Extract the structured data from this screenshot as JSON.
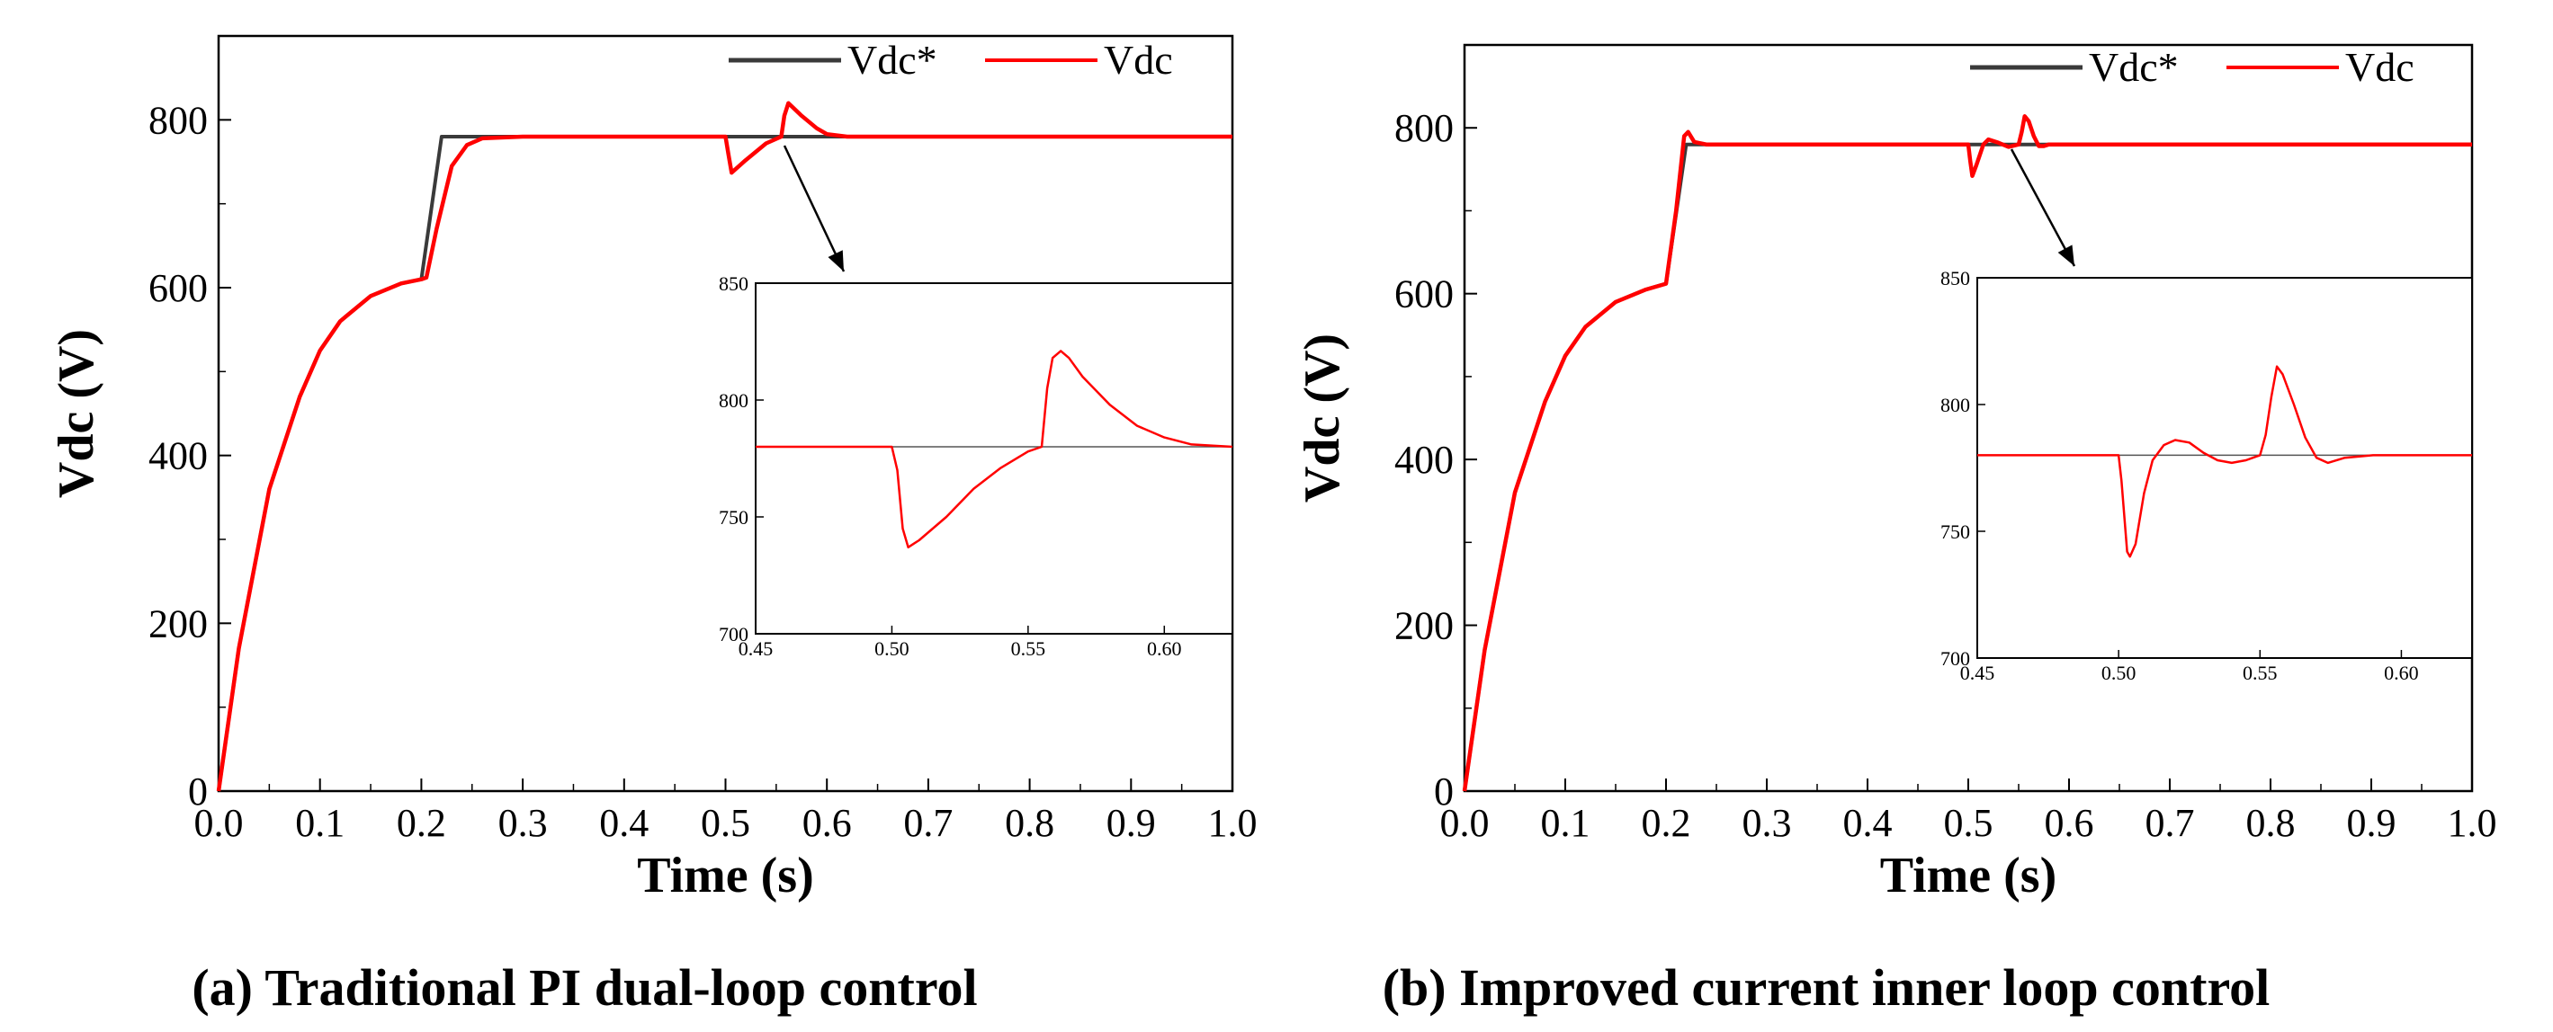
{
  "chart_data": [
    {
      "type": "line",
      "panel_label": "(a) Traditional PI dual-loop control",
      "xlabel": "Time (s)",
      "ylabel": "Vdc (V)",
      "xlim": [
        0,
        1.0
      ],
      "ylim": [
        0,
        900
      ],
      "x_ticks": [
        "0.0",
        "0.1",
        "0.2",
        "0.3",
        "0.4",
        "0.5",
        "0.6",
        "0.7",
        "0.8",
        "0.9",
        "1.0"
      ],
      "y_ticks": [
        "0",
        "200",
        "400",
        "600",
        "800"
      ],
      "legend_position": "top-right",
      "series": [
        {
          "name": "Vdc*",
          "color": "#3a3a3a",
          "points": [
            [
              0,
              0
            ],
            [
              0.02,
              170
            ],
            [
              0.05,
              360
            ],
            [
              0.08,
              470
            ],
            [
              0.1,
              525
            ],
            [
              0.12,
              560
            ],
            [
              0.15,
              590
            ],
            [
              0.18,
              605
            ],
            [
              0.2,
              610
            ],
            [
              0.22,
              780
            ],
            [
              1.0,
              780
            ]
          ]
        },
        {
          "name": "Vdc",
          "color": "#ff0000",
          "points": [
            [
              0,
              0
            ],
            [
              0.02,
              170
            ],
            [
              0.05,
              360
            ],
            [
              0.08,
              470
            ],
            [
              0.1,
              525
            ],
            [
              0.12,
              560
            ],
            [
              0.15,
              590
            ],
            [
              0.18,
              605
            ],
            [
              0.2,
              610
            ],
            [
              0.205,
              612
            ],
            [
              0.215,
              670
            ],
            [
              0.23,
              745
            ],
            [
              0.245,
              770
            ],
            [
              0.26,
              778
            ],
            [
              0.3,
              780
            ],
            [
              0.5,
              780
            ],
            [
              0.503,
              758
            ],
            [
              0.506,
              737
            ],
            [
              0.52,
              752
            ],
            [
              0.54,
              772
            ],
            [
              0.555,
              780
            ],
            [
              0.558,
              805
            ],
            [
              0.562,
              820
            ],
            [
              0.575,
              805
            ],
            [
              0.59,
              790
            ],
            [
              0.6,
              783
            ],
            [
              0.62,
              780
            ],
            [
              1.0,
              780
            ]
          ]
        }
      ],
      "inset": {
        "xlim": [
          0.45,
          0.625
        ],
        "ylim": [
          700,
          850
        ],
        "x_ticks": [
          "0.45",
          "0.50",
          "0.55",
          "0.60"
        ],
        "y_ticks": [
          "700",
          "750",
          "800",
          "850"
        ],
        "series": [
          {
            "name": "Vdc*",
            "color": "#555555",
            "points": [
              [
                0.45,
                780
              ],
              [
                0.625,
                780
              ]
            ]
          },
          {
            "name": "Vdc",
            "color": "#ff0000",
            "points": [
              [
                0.45,
                780
              ],
              [
                0.5,
                780
              ],
              [
                0.502,
                770
              ],
              [
                0.504,
                745
              ],
              [
                0.506,
                737
              ],
              [
                0.51,
                740
              ],
              [
                0.52,
                750
              ],
              [
                0.53,
                762
              ],
              [
                0.54,
                771
              ],
              [
                0.55,
                778
              ],
              [
                0.555,
                780
              ],
              [
                0.557,
                805
              ],
              [
                0.559,
                818
              ],
              [
                0.562,
                821
              ],
              [
                0.565,
                818
              ],
              [
                0.57,
                810
              ],
              [
                0.58,
                798
              ],
              [
                0.59,
                789
              ],
              [
                0.6,
                784
              ],
              [
                0.61,
                781
              ],
              [
                0.625,
                780
              ]
            ]
          }
        ]
      }
    },
    {
      "type": "line",
      "panel_label": "(b) Improved current inner loop control",
      "xlabel": "Time (s)",
      "ylabel": "Vdc (V)",
      "xlim": [
        0,
        1.0
      ],
      "ylim": [
        0,
        900
      ],
      "x_ticks": [
        "0.0",
        "0.1",
        "0.2",
        "0.3",
        "0.4",
        "0.5",
        "0.6",
        "0.7",
        "0.8",
        "0.9",
        "1.0"
      ],
      "y_ticks": [
        "0",
        "200",
        "400",
        "600",
        "800"
      ],
      "legend_position": "top-right",
      "series": [
        {
          "name": "Vdc*",
          "color": "#3a3a3a",
          "points": [
            [
              0,
              0
            ],
            [
              0.02,
              170
            ],
            [
              0.05,
              360
            ],
            [
              0.08,
              470
            ],
            [
              0.1,
              525
            ],
            [
              0.12,
              560
            ],
            [
              0.15,
              590
            ],
            [
              0.18,
              605
            ],
            [
              0.2,
              612
            ],
            [
              0.22,
              780
            ],
            [
              1.0,
              780
            ]
          ]
        },
        {
          "name": "Vdc",
          "color": "#ff0000",
          "points": [
            [
              0,
              0
            ],
            [
              0.02,
              170
            ],
            [
              0.05,
              360
            ],
            [
              0.08,
              470
            ],
            [
              0.1,
              525
            ],
            [
              0.12,
              560
            ],
            [
              0.15,
              590
            ],
            [
              0.18,
              605
            ],
            [
              0.2,
              612
            ],
            [
              0.21,
              700
            ],
            [
              0.218,
              790
            ],
            [
              0.222,
              795
            ],
            [
              0.228,
              783
            ],
            [
              0.24,
              780
            ],
            [
              0.5,
              780
            ],
            [
              0.502,
              760
            ],
            [
              0.504,
              742
            ],
            [
              0.508,
              755
            ],
            [
              0.515,
              780
            ],
            [
              0.52,
              786
            ],
            [
              0.53,
              782
            ],
            [
              0.54,
              777
            ],
            [
              0.55,
              780
            ],
            [
              0.553,
              795
            ],
            [
              0.556,
              814
            ],
            [
              0.56,
              808
            ],
            [
              0.565,
              790
            ],
            [
              0.57,
              778
            ],
            [
              0.575,
              778
            ],
            [
              0.58,
              780
            ],
            [
              1.0,
              780
            ]
          ]
        }
      ],
      "inset": {
        "xlim": [
          0.45,
          0.625
        ],
        "ylim": [
          700,
          850
        ],
        "x_ticks": [
          "0.45",
          "0.50",
          "0.55",
          "0.60"
        ],
        "y_ticks": [
          "700",
          "750",
          "800",
          "850"
        ],
        "series": [
          {
            "name": "Vdc*",
            "color": "#555555",
            "points": [
              [
                0.45,
                780
              ],
              [
                0.625,
                780
              ]
            ]
          },
          {
            "name": "Vdc",
            "color": "#ff0000",
            "points": [
              [
                0.45,
                780
              ],
              [
                0.5,
                780
              ],
              [
                0.501,
                770
              ],
              [
                0.503,
                742
              ],
              [
                0.504,
                740
              ],
              [
                0.506,
                745
              ],
              [
                0.509,
                765
              ],
              [
                0.512,
                778
              ],
              [
                0.516,
                784
              ],
              [
                0.52,
                786
              ],
              [
                0.525,
                785
              ],
              [
                0.53,
                781
              ],
              [
                0.535,
                778
              ],
              [
                0.54,
                777
              ],
              [
                0.545,
                778
              ],
              [
                0.55,
                780
              ],
              [
                0.552,
                788
              ],
              [
                0.554,
                803
              ],
              [
                0.556,
                815
              ],
              [
                0.558,
                812
              ],
              [
                0.562,
                800
              ],
              [
                0.566,
                787
              ],
              [
                0.57,
                779
              ],
              [
                0.574,
                777
              ],
              [
                0.58,
                779
              ],
              [
                0.59,
                780
              ],
              [
                0.625,
                780
              ]
            ]
          }
        ]
      }
    }
  ]
}
